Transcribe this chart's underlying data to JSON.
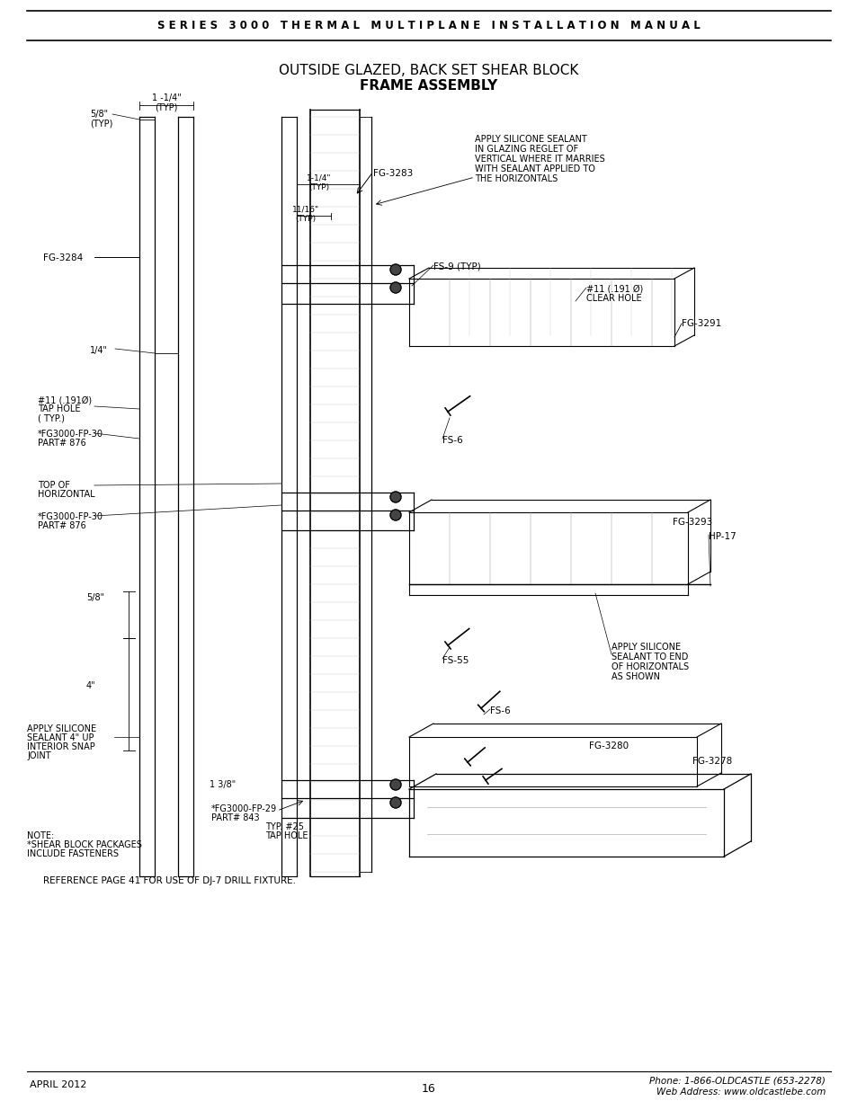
{
  "bg_color": "#ffffff",
  "page_width": 9.54,
  "page_height": 12.35,
  "header_text": "S E R I E S   3 0 0 0   T H E R M A L   M U L T I P L A N E   I N S T A L L A T I O N   M A N U A L",
  "title_line1": "OUTSIDE GLAZED, BACK SET SHEAR BLOCK",
  "title_line2": "FRAME ASSEMBLY",
  "footer_left": "APRIL 2012",
  "footer_center": "16",
  "footer_right_line1": "Phone: 1-866-OLDCASTLE (653-2278)",
  "footer_right_line2": "Web Address: www.oldcastlebe.com",
  "reference_note": "REFERENCE PAGE 41 FOR USE OF DJ-7 DRILL FIXTURE.",
  "note_line1": "NOTE:",
  "note_line2": "*SHEAR BLOCK PACKAGES",
  "note_line3": "INCLUDE FASTENERS"
}
